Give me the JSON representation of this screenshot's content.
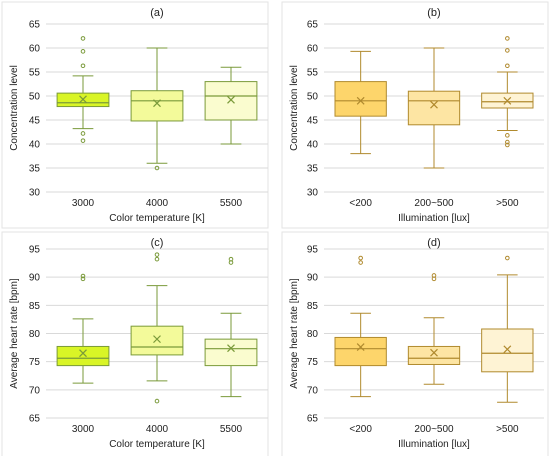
{
  "chart_data": [
    {
      "type": "box",
      "title": "(a)",
      "xlabel": "Color temperature [K]",
      "ylabel": "Concentration level",
      "ylim": [
        30,
        65
      ],
      "yticks": [
        30,
        35,
        40,
        45,
        50,
        55,
        60,
        65
      ],
      "grid": true,
      "categories": [
        "3000",
        "4000",
        "5500"
      ],
      "boxes": [
        {
          "category": "3000",
          "color": "#d9f526",
          "min": 43.2,
          "q1": 47.8,
          "median": 48.6,
          "q3": 50.6,
          "max": 54.2,
          "mean": 49.3,
          "outliers": [
            62,
            59.3,
            56.3,
            42.2,
            40.7
          ]
        },
        {
          "category": "4000",
          "color": "#f3fa9a",
          "min": 36,
          "q1": 44.8,
          "median": 49,
          "q3": 51.1,
          "max": 60,
          "mean": 48.5,
          "outliers": [
            35
          ]
        },
        {
          "category": "5500",
          "color": "#fafccf",
          "min": 40,
          "q1": 45,
          "median": 50,
          "q3": 53,
          "max": 56,
          "mean": 49.2,
          "outliers": []
        }
      ]
    },
    {
      "type": "box",
      "title": "(b)",
      "xlabel": "Illumination [lux]",
      "ylabel": "Concentration level",
      "ylim": [
        30,
        65
      ],
      "yticks": [
        30,
        35,
        40,
        45,
        50,
        55,
        60,
        65
      ],
      "grid": true,
      "categories": [
        "<200",
        "200~500",
        ">500"
      ],
      "boxes": [
        {
          "category": "<200",
          "color": "#fdd56b",
          "min": 38,
          "q1": 45.8,
          "median": 49,
          "q3": 53,
          "max": 59.3,
          "mean": 49,
          "outliers": []
        },
        {
          "category": "200~500",
          "color": "#fde5a3",
          "min": 35,
          "q1": 44,
          "median": 49,
          "q3": 51,
          "max": 60,
          "mean": 48.2,
          "outliers": []
        },
        {
          "category": ">500",
          "color": "#fef3d4",
          "min": 42.8,
          "q1": 47.5,
          "median": 48.8,
          "q3": 50.6,
          "max": 55,
          "mean": 49,
          "outliers": [
            62,
            59.5,
            56.3,
            41.8,
            40.4,
            39.8
          ]
        }
      ]
    },
    {
      "type": "box",
      "title": "(c)",
      "xlabel": "Color temperature [K]",
      "ylabel": "Average heart rate [bpm]",
      "ylim": [
        65,
        95
      ],
      "yticks": [
        65,
        70,
        75,
        80,
        85,
        90,
        95
      ],
      "grid": true,
      "categories": [
        "3000",
        "4000",
        "5500"
      ],
      "boxes": [
        {
          "category": "3000",
          "color": "#d9f526",
          "min": 71.2,
          "q1": 74.3,
          "median": 75.6,
          "q3": 77.7,
          "max": 82.6,
          "mean": 76.5,
          "outliers": [
            90.2,
            89.7
          ]
        },
        {
          "category": "4000",
          "color": "#f3fa9a",
          "min": 71.6,
          "q1": 76.2,
          "median": 77.6,
          "q3": 81.3,
          "max": 88.5,
          "mean": 79,
          "outliers": [
            94,
            93.2,
            68
          ]
        },
        {
          "category": "5500",
          "color": "#fafccf",
          "min": 68.8,
          "q1": 74.3,
          "median": 77.3,
          "q3": 79,
          "max": 83.6,
          "mean": 77.4,
          "outliers": [
            93.2,
            92.6
          ]
        }
      ]
    },
    {
      "type": "box",
      "title": "(d)",
      "xlabel": "Illumination [lux]",
      "ylabel": "Average heart rate [bpm]",
      "ylim": [
        65,
        95
      ],
      "yticks": [
        65,
        70,
        75,
        80,
        85,
        90,
        95
      ],
      "grid": true,
      "categories": [
        "<200",
        "200~500",
        ">500"
      ],
      "boxes": [
        {
          "category": "<200",
          "color": "#fdd56b",
          "min": 68.8,
          "q1": 74.3,
          "median": 77.3,
          "q3": 79.3,
          "max": 83.6,
          "mean": 77.6,
          "outliers": [
            93.4,
            92.6
          ]
        },
        {
          "category": "200~500",
          "color": "#fde5a3",
          "min": 71,
          "q1": 74.5,
          "median": 75.6,
          "q3": 77.7,
          "max": 82.8,
          "mean": 76.6,
          "outliers": [
            90.3,
            89.7
          ]
        },
        {
          "category": ">500",
          "color": "#fef3d4",
          "min": 67.8,
          "q1": 73.2,
          "median": 76.5,
          "q3": 80.8,
          "max": 90.4,
          "mean": 77.2,
          "outliers": [
            93.4
          ]
        }
      ]
    }
  ],
  "colors": {
    "color_temp_outline": "#7a9a3a",
    "illumination_outline": "#b08a2e",
    "grid": "#d9d9d9",
    "axis_text": "#222222"
  }
}
